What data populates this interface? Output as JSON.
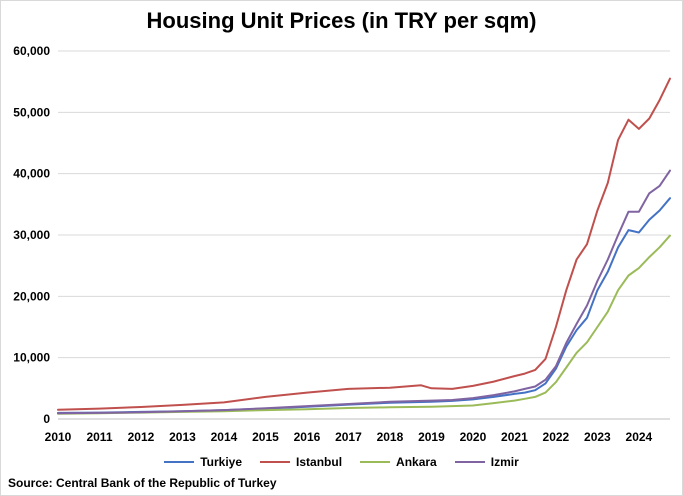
{
  "chart_data": {
    "type": "line",
    "title": "Housing Unit Prices (in TRY per sqm)",
    "xlabel": "",
    "ylabel": "",
    "x_tick_labels": [
      "2010",
      "2011",
      "2012",
      "2013",
      "2014",
      "2015",
      "2016",
      "2017",
      "2018",
      "2019",
      "2020",
      "2021",
      "2022",
      "2023",
      "2024"
    ],
    "y_tick_labels": [
      "0",
      "10,000",
      "20,000",
      "30,000",
      "40,000",
      "50,000",
      "60,000"
    ],
    "ylim": [
      0,
      60000
    ],
    "xlim": [
      2010,
      2024.75
    ],
    "grid": "horizontal",
    "legend_position": "bottom",
    "series": [
      {
        "name": "Turkiye",
        "color": "#4472c4",
        "x": [
          2010,
          2011,
          2012,
          2013,
          2014,
          2015,
          2016,
          2017,
          2018,
          2019,
          2019.5,
          2020,
          2020.5,
          2021,
          2021.25,
          2021.5,
          2021.75,
          2022,
          2022.25,
          2022.5,
          2022.75,
          2023,
          2023.25,
          2023.5,
          2023.75,
          2024,
          2024.25,
          2024.5,
          2024.75
        ],
        "y": [
          1000,
          1050,
          1150,
          1250,
          1450,
          1700,
          2000,
          2350,
          2650,
          2800,
          2950,
          3200,
          3600,
          4100,
          4300,
          4700,
          5800,
          8200,
          11800,
          14500,
          16500,
          21000,
          24000,
          28000,
          30800,
          30400,
          32500,
          34000,
          36000
        ]
      },
      {
        "name": "Istanbul",
        "color": "#c0504d",
        "x": [
          2010,
          2011,
          2012,
          2013,
          2014,
          2015,
          2016,
          2017,
          2018,
          2018.75,
          2019,
          2019.5,
          2020,
          2020.5,
          2021,
          2021.25,
          2021.5,
          2021.75,
          2022,
          2022.25,
          2022.5,
          2022.75,
          2023,
          2023.25,
          2023.5,
          2023.75,
          2024,
          2024.25,
          2024.5,
          2024.75
        ],
        "y": [
          1500,
          1700,
          1950,
          2300,
          2700,
          3600,
          4300,
          4900,
          5100,
          5500,
          5000,
          4900,
          5400,
          6100,
          7000,
          7400,
          8000,
          9800,
          15000,
          21000,
          26000,
          28500,
          34000,
          38500,
          45500,
          48800,
          47300,
          49000,
          52000,
          55500
        ]
      },
      {
        "name": "Ankara",
        "color": "#9bbb59",
        "x": [
          2010,
          2011,
          2012,
          2013,
          2014,
          2015,
          2016,
          2017,
          2018,
          2019,
          2020,
          2020.5,
          2021,
          2021.25,
          2021.5,
          2021.75,
          2022,
          2022.25,
          2022.5,
          2022.75,
          2023,
          2023.25,
          2023.5,
          2023.75,
          2024,
          2024.25,
          2024.5,
          2024.75
        ],
        "y": [
          850,
          950,
          1050,
          1150,
          1250,
          1450,
          1600,
          1800,
          1900,
          2000,
          2200,
          2600,
          3000,
          3300,
          3600,
          4300,
          6000,
          8400,
          10800,
          12500,
          15000,
          17500,
          21000,
          23400,
          24600,
          26400,
          28000,
          29900
        ]
      },
      {
        "name": "Izmir",
        "color": "#8064a2",
        "x": [
          2010,
          2011,
          2012,
          2013,
          2014,
          2015,
          2016,
          2017,
          2018,
          2019,
          2019.5,
          2020,
          2020.5,
          2021,
          2021.25,
          2021.5,
          2021.75,
          2022,
          2022.25,
          2022.5,
          2022.75,
          2023,
          2023.25,
          2023.5,
          2023.75,
          2024,
          2024.25,
          2024.5,
          2024.75
        ],
        "y": [
          950,
          1000,
          1100,
          1250,
          1450,
          1750,
          2100,
          2450,
          2800,
          3000,
          3100,
          3400,
          3900,
          4500,
          4900,
          5300,
          6400,
          8600,
          12400,
          15500,
          18500,
          22500,
          26000,
          30000,
          33800,
          33800,
          36800,
          38000,
          40500
        ]
      }
    ]
  },
  "footer": {
    "source": "Source: Central Bank of the Republic of Turkey"
  }
}
